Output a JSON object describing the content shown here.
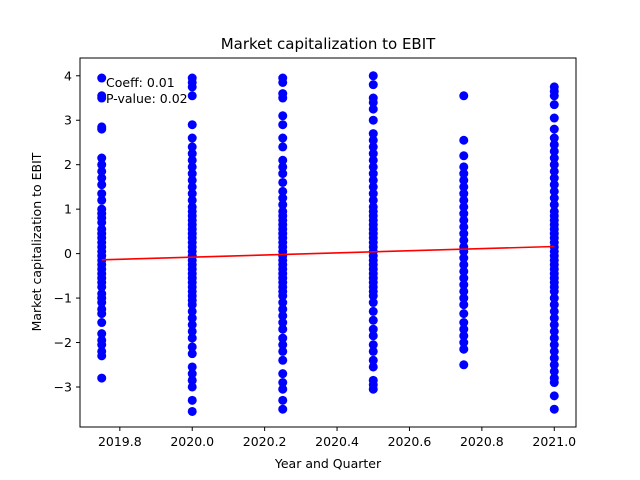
{
  "chart_data": {
    "type": "scatter",
    "title": "Market capitalization to EBIT",
    "xlabel": "Year and Quarter",
    "ylabel": "Market capitalization to EBIT",
    "xlim": [
      2019.69,
      2021.06
    ],
    "ylim": [
      -3.9,
      4.4
    ],
    "grid": false,
    "xticks": [
      2019.8,
      2020.0,
      2020.2,
      2020.4,
      2020.6,
      2020.8,
      2021.0
    ],
    "xtick_labels": [
      "2019.8",
      "2020.0",
      "2020.2",
      "2020.4",
      "2020.6",
      "2020.8",
      "2021.0"
    ],
    "yticks": [
      -3,
      -2,
      -1,
      0,
      1,
      2,
      3,
      4
    ],
    "ytick_labels": [
      "−3",
      "−2",
      "−1",
      "0",
      "1",
      "2",
      "3",
      "4"
    ],
    "annotations": [
      "Coeff: 0.01",
      "P-value: 0.02"
    ],
    "scatter_color": "#0000ff",
    "trend_color": "#ff0000",
    "series": [
      {
        "kind": "points",
        "groups": [
          {
            "x": 2019.75,
            "y": [
              3.95,
              3.55,
              3.5,
              2.85,
              2.8,
              2.15,
              2.0,
              1.85,
              1.7,
              1.55,
              1.35,
              1.2,
              1.0,
              0.9,
              0.8,
              0.7,
              0.55,
              0.45,
              0.35,
              0.25,
              0.15,
              0.05,
              -0.05,
              -0.15,
              -0.25,
              -0.35,
              -0.45,
              -0.55,
              -0.65,
              -0.75,
              -0.9,
              -1.0,
              -1.1,
              -1.25,
              -1.35,
              -1.55,
              -1.8,
              -1.95,
              -2.05,
              -2.2,
              -2.3,
              -2.8
            ]
          },
          {
            "x": 2020.0,
            "y": [
              3.95,
              3.85,
              3.75,
              3.55,
              2.9,
              2.6,
              2.4,
              2.25,
              2.1,
              1.95,
              1.8,
              1.65,
              1.5,
              1.35,
              1.2,
              1.05,
              0.95,
              0.85,
              0.75,
              0.65,
              0.55,
              0.45,
              0.35,
              0.25,
              0.15,
              0.05,
              -0.05,
              -0.15,
              -0.25,
              -0.35,
              -0.45,
              -0.55,
              -0.65,
              -0.75,
              -0.85,
              -0.95,
              -1.05,
              -1.15,
              -1.3,
              -1.45,
              -1.6,
              -1.75,
              -1.9,
              -2.1,
              -2.25,
              -2.55,
              -2.7,
              -2.85,
              -3.0,
              -3.3,
              -3.55
            ]
          },
          {
            "x": 2020.25,
            "y": [
              3.95,
              3.85,
              3.6,
              3.5,
              3.1,
              2.9,
              2.6,
              2.4,
              2.1,
              1.95,
              1.8,
              1.6,
              1.4,
              1.25,
              1.1,
              0.95,
              0.85,
              0.75,
              0.65,
              0.55,
              0.45,
              0.35,
              0.25,
              0.15,
              0.05,
              -0.05,
              -0.15,
              -0.25,
              -0.35,
              -0.45,
              -0.55,
              -0.65,
              -0.75,
              -0.85,
              -0.95,
              -1.1,
              -1.25,
              -1.4,
              -1.55,
              -1.7,
              -1.9,
              -2.05,
              -2.2,
              -2.4,
              -2.7,
              -2.9,
              -3.05,
              -3.3,
              -3.5
            ]
          },
          {
            "x": 2020.5,
            "y": [
              4.0,
              3.8,
              3.5,
              3.4,
              3.25,
              3.0,
              2.7,
              2.55,
              2.4,
              2.25,
              2.1,
              1.95,
              1.8,
              1.65,
              1.5,
              1.35,
              1.2,
              1.05,
              0.95,
              0.85,
              0.75,
              0.65,
              0.55,
              0.45,
              0.35,
              0.25,
              0.15,
              0.05,
              -0.05,
              -0.15,
              -0.25,
              -0.35,
              -0.45,
              -0.55,
              -0.65,
              -0.75,
              -0.85,
              -0.95,
              -1.1,
              -1.3,
              -1.5,
              -1.7,
              -1.85,
              -2.05,
              -2.2,
              -2.4,
              -2.55,
              -2.85,
              -2.95,
              -3.05
            ]
          },
          {
            "x": 2020.75,
            "y": [
              3.55,
              2.55,
              2.2,
              1.95,
              1.8,
              1.65,
              1.5,
              1.35,
              1.2,
              1.05,
              0.9,
              0.75,
              0.6,
              0.45,
              0.3,
              0.15,
              0.05,
              -0.1,
              -0.25,
              -0.4,
              -0.55,
              -0.7,
              -0.85,
              -1.0,
              -1.15,
              -1.35,
              -1.55,
              -1.7,
              -1.85,
              -2.0,
              -2.15,
              -2.5
            ]
          },
          {
            "x": 2021.0,
            "y": [
              3.75,
              3.65,
              3.55,
              3.35,
              3.05,
              2.8,
              2.6,
              2.45,
              2.3,
              2.15,
              2.0,
              1.85,
              1.7,
              1.55,
              1.4,
              1.25,
              1.1,
              0.95,
              0.85,
              0.75,
              0.65,
              0.55,
              0.45,
              0.35,
              0.25,
              0.15,
              0.05,
              -0.05,
              -0.15,
              -0.25,
              -0.35,
              -0.45,
              -0.55,
              -0.65,
              -0.75,
              -0.85,
              -1.0,
              -1.15,
              -1.3,
              -1.45,
              -1.6,
              -1.75,
              -1.9,
              -2.05,
              -2.2,
              -2.35,
              -2.5,
              -2.65,
              -2.8,
              -2.9,
              -3.2,
              -3.5
            ]
          }
        ]
      },
      {
        "kind": "line",
        "x": [
          2019.75,
          2021.0
        ],
        "y": [
          -0.14,
          0.16
        ]
      }
    ]
  }
}
